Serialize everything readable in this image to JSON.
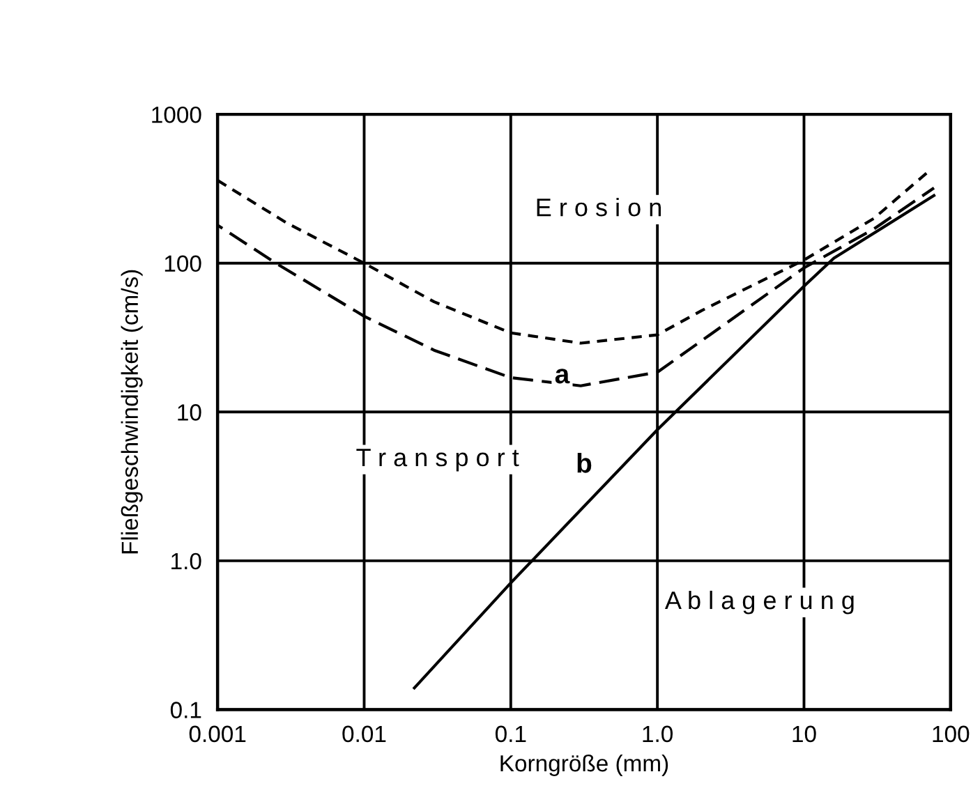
{
  "chart_data": {
    "type": "line",
    "xlabel": "Korngröße (mm)",
    "ylabel": "Fließgeschwindigkeit (cm/s)",
    "log": "xy",
    "xlim": [
      0.001,
      100
    ],
    "ylim": [
      0.1,
      1000
    ],
    "xticks": [
      0.001,
      0.01,
      0.1,
      {
        "value": 1,
        "label": "1.0"
      },
      10,
      100
    ],
    "yticks": [
      0.1,
      {
        "value": 1,
        "label": "1.0"
      },
      10,
      100,
      1000
    ],
    "grid": true,
    "series": [
      {
        "x": [
          0.001,
          0.003,
          0.01,
          0.03,
          0.1,
          0.3,
          1.0,
          2,
          5,
          10,
          30,
          70
        ],
        "values": [
          360,
          185,
          100,
          55,
          34,
          29,
          33,
          48,
          75,
          105,
          200,
          410
        ],
        "color": "#000000",
        "line_style": "dashed"
      },
      {
        "x": [
          0.001,
          0.0025,
          0.01,
          0.03,
          0.1,
          0.3,
          1,
          3,
          10,
          30,
          77
        ],
        "values": [
          180,
          100,
          44,
          26,
          17,
          15,
          18.5,
          40,
          93,
          170,
          320
        ],
        "color": "#000000",
        "line_style": "dashed"
      },
      {
        "x": [
          0.022,
          0.1,
          1,
          10,
          16,
          77
        ],
        "values": [
          0.14,
          0.71,
          7.6,
          70,
          108,
          285
        ],
        "color": "#000000",
        "line_style": "solid"
      }
    ],
    "annotations": [
      "E r o s i o n",
      "T r a n s p o r t",
      "A b l a g e r u n g",
      "a",
      "b"
    ]
  }
}
